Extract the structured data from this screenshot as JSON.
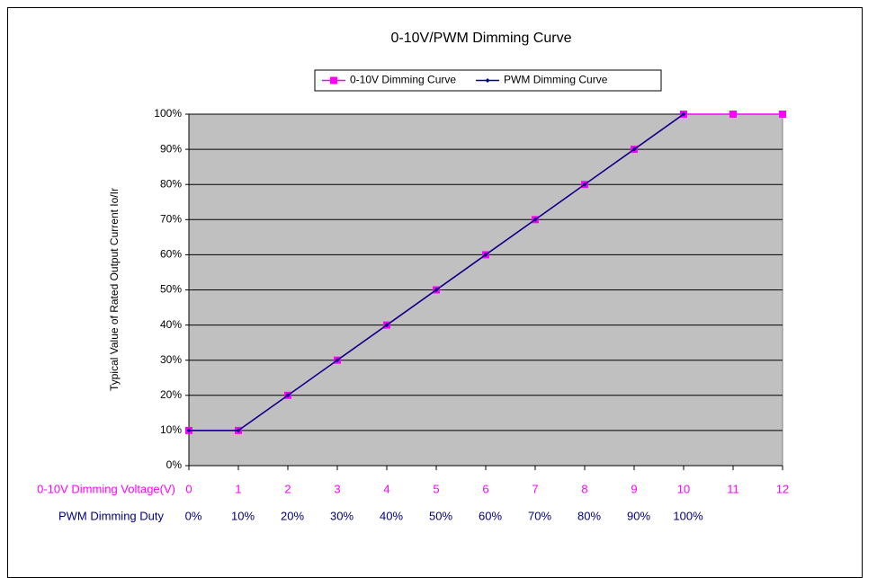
{
  "chart_data": {
    "type": "line",
    "title": "0-10V/PWM Dimming Curve",
    "y_label": "Typical Value of Rated Output Current Io/Ir",
    "x_label": "0-10V Dimming Voltage(V)",
    "x2_label": "PWM Dimming Duty",
    "x2_tick_labels": [
      "0%",
      "10%",
      "20%",
      "30%",
      "40%",
      "50%",
      "60%",
      "70%",
      "80%",
      "90%",
      "100%"
    ],
    "xlim": [
      0,
      12
    ],
    "xticks": [
      0,
      1,
      2,
      3,
      4,
      5,
      6,
      7,
      8,
      9,
      10,
      11,
      12
    ],
    "ylim": [
      0,
      100
    ],
    "yticks": [
      {
        "value": 0,
        "label": "0%"
      },
      {
        "value": 10,
        "label": "10%"
      },
      {
        "value": 20,
        "label": "20%"
      },
      {
        "value": 30,
        "label": "30%"
      },
      {
        "value": 40,
        "label": "40%"
      },
      {
        "value": 50,
        "label": "50%"
      },
      {
        "value": 60,
        "label": "60%"
      },
      {
        "value": 70,
        "label": "70%"
      },
      {
        "value": 80,
        "label": "80%"
      },
      {
        "value": 90,
        "label": "90%"
      },
      {
        "value": 100,
        "label": "100%"
      }
    ],
    "grid": true,
    "legend": "top",
    "series": [
      {
        "name": "0-10V Dimming Curve",
        "color": "#ff00ff",
        "marker": "square",
        "x": [
          0,
          1,
          2,
          3,
          4,
          5,
          6,
          7,
          8,
          9,
          10,
          11,
          12
        ],
        "values": [
          10,
          10,
          20,
          30,
          40,
          50,
          60,
          70,
          80,
          90,
          100,
          100,
          100
        ]
      },
      {
        "name": "PWM Dimming Curve",
        "color": "#000080",
        "marker": "diamond",
        "x": [
          0,
          1,
          2,
          3,
          4,
          5,
          6,
          7,
          8,
          9,
          10
        ],
        "values": [
          10,
          10,
          20,
          30,
          40,
          50,
          60,
          70,
          80,
          90,
          100
        ]
      }
    ]
  }
}
